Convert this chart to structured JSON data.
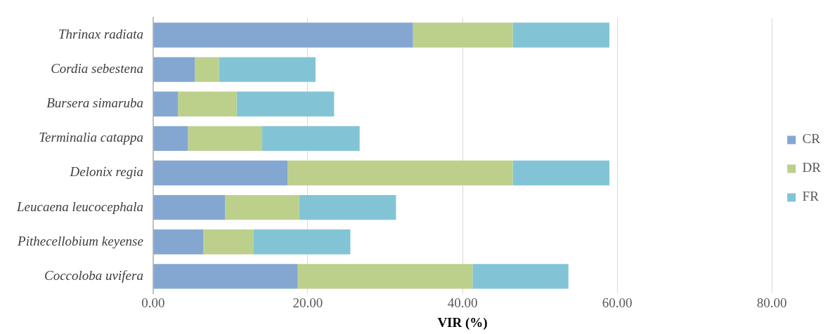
{
  "chart_data": {
    "type": "bar",
    "orientation": "horizontal",
    "stacked": true,
    "xlabel": "VIR (%)",
    "categories": [
      "Thrinax radiata",
      "Cordia sebestena",
      "Bursera simaruba",
      "Terminalia catappa",
      "Delonix regia",
      "Leucaena leucocephala",
      "Pithecellobium keyense",
      "Coccoloba uvifera"
    ],
    "series": [
      {
        "name": "CR",
        "color": "#84a7d2",
        "values": [
          33.6,
          5.4,
          3.2,
          4.5,
          17.4,
          9.3,
          6.5,
          18.7
        ]
      },
      {
        "name": "DR",
        "color": "#bcd08c",
        "values": [
          12.9,
          3.1,
          7.6,
          9.6,
          29.1,
          9.6,
          6.5,
          22.6
        ]
      },
      {
        "name": "FR",
        "color": "#82c4d6",
        "values": [
          12.5,
          12.5,
          12.6,
          12.6,
          12.5,
          12.5,
          12.5,
          12.4
        ]
      }
    ],
    "xlim": [
      0,
      80
    ],
    "xticks": [
      {
        "value": 0,
        "label": "0.00"
      },
      {
        "value": 20,
        "label": "20.00"
      },
      {
        "value": 40,
        "label": "40.00"
      },
      {
        "value": 60,
        "label": "60.00"
      },
      {
        "value": 80,
        "label": "80.00"
      }
    ],
    "grid": "x",
    "legend": "right"
  }
}
